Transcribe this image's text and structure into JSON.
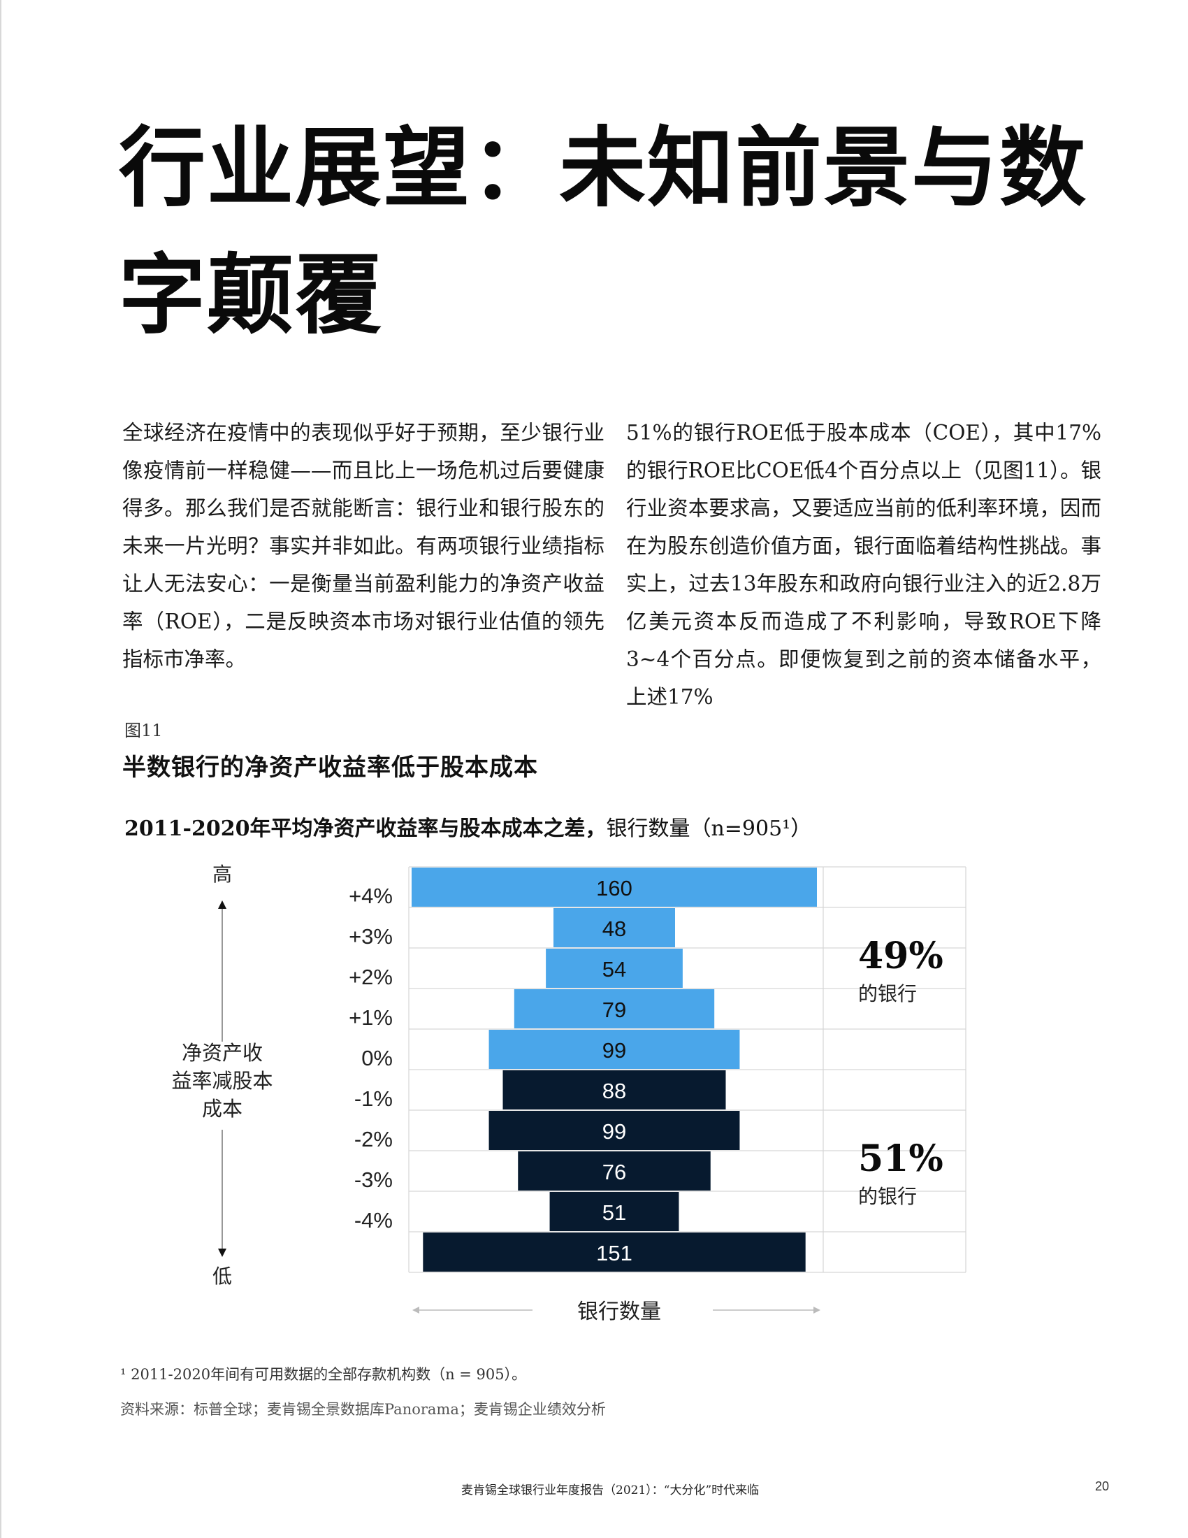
{
  "title": "行业展望：未知前景与数字颠覆",
  "body_left": "全球经济在疫情中的表现似乎好于预期，至少银行业像疫情前一样稳健——而且比上一场危机过后要健康得多。那么我们是否就能断言：银行业和银行股东的未来一片光明？事实并非如此。有两项银行业绩指标让人无法安心：一是衡量当前盈利能力的净资产收益率（ROE），二是反映资本市场对银行业估值的领先指标市净率。",
  "body_right": "51%的银行ROE低于股本成本（COE），其中17%的银行ROE比COE低4个百分点以上（见图11）。银行业资本要求高，又要适应当前的低利率环境，因而在为股东创造价值方面，银行面临着结构性挑战。事实上，过去13年股东和政府向银行业注入的近2.8万亿美元资本反而造成了不利影响，导致ROE下降3~4个百分点。即便恢复到之前的资本储备水平，上述17%",
  "figure": {
    "label": "图11",
    "title": "半数银行的净资产收益率低于股本成本",
    "subtitle_bold": "2011-2020年平均净资产收益率与股本成本之差，",
    "subtitle_rest": "银行数量（n=905¹）"
  },
  "chart_data": {
    "type": "bar",
    "orientation": "horizontal-centered",
    "title": "",
    "xlabel": "银行数量",
    "ylabel": "净资产收益率减股本成本",
    "y_top_label": "高",
    "y_bottom_label": "低",
    "tick_labels": [
      "+4%",
      "+3%",
      "+2%",
      "+1%",
      "0%",
      "-1%",
      "-2%",
      "-3%",
      "-4%"
    ],
    "categories": [
      ">+4%",
      "+3% to +4%",
      "+2% to +3%",
      "+1% to +2%",
      "0% to +1%",
      "-1% to 0%",
      "-2% to -1%",
      "-3% to -2%",
      "-4% to -3%",
      "<-4%"
    ],
    "values": [
      160,
      48,
      54,
      79,
      99,
      88,
      99,
      76,
      51,
      151
    ],
    "colors": [
      "#4aa6ea",
      "#4aa6ea",
      "#4aa6ea",
      "#4aa6ea",
      "#4aa6ea",
      "#071a2f",
      "#071a2f",
      "#071a2f",
      "#071a2f",
      "#071a2f"
    ],
    "groups": [
      {
        "percent": "49%",
        "label": "的银行"
      },
      {
        "percent": "51%",
        "label": "的银行"
      }
    ]
  },
  "footnote": "¹ 2011-2020年间有可用数据的全部存款机构数（n = 905）。",
  "source": "资料来源：标普全球；麦肯锡全景数据库Panorama；麦肯锡企业绩效分析",
  "footer": {
    "report_title": "麦肯锡全球银行业年度报告（2021）：“大分化”时代来临",
    "page_number": "20"
  }
}
